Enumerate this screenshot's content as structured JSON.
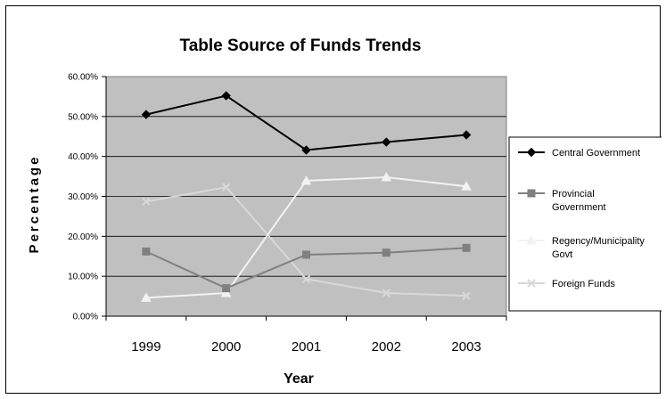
{
  "chart_data": {
    "type": "line",
    "title": "Table Source of Funds Trends",
    "xlabel": "Year",
    "ylabel": "Percentage",
    "categories": [
      "1999",
      "2000",
      "2001",
      "2002",
      "2003"
    ],
    "ylim": [
      0,
      60
    ],
    "yticks": [
      "0.00%",
      "10.00%",
      "20.00%",
      "30.00%",
      "40.00%",
      "50.00%",
      "60.00%"
    ],
    "grid": true,
    "legend_position": "right",
    "plot_background": "#c0c0c0",
    "series": [
      {
        "name": "Central Government",
        "values": [
          50.5,
          55.2,
          41.6,
          43.6,
          45.4
        ],
        "color": "#000000",
        "marker": "diamond"
      },
      {
        "name": "Provincial Government",
        "values": [
          16.2,
          7.0,
          15.4,
          15.9,
          17.1
        ],
        "color": "#808080",
        "marker": "square"
      },
      {
        "name": "Regency/Municipality Govt",
        "values": [
          4.6,
          5.8,
          33.9,
          34.8,
          32.5
        ],
        "color": "#f2f2f2",
        "marker": "triangle"
      },
      {
        "name": "Foreign Funds",
        "values": [
          28.7,
          32.3,
          9.3,
          5.8,
          5.1
        ],
        "color": "#d8d8d8",
        "marker": "x"
      }
    ],
    "legend_lines": [
      [
        "Central Government"
      ],
      [
        "Provincial",
        "Government"
      ],
      [
        "Regency/Municipality",
        "Govt"
      ],
      [
        "Foreign Funds"
      ]
    ]
  }
}
